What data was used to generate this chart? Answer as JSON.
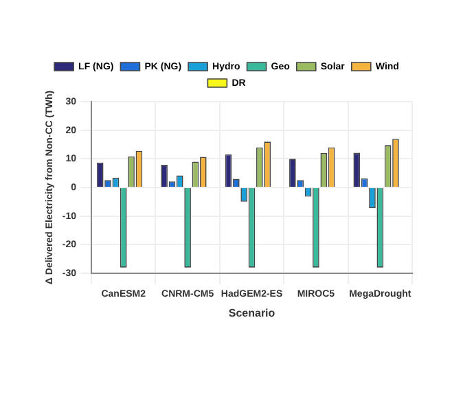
{
  "chart_data": {
    "type": "bar",
    "xlabel": "Scenario",
    "ylabel": "Δ Delivered Electricity from Non-CC (TWh)",
    "categories": [
      "CanESM2",
      "CNRM-CM5",
      "HadGEM2-ES",
      "MIROC5",
      "MegaDrought"
    ],
    "series": [
      {
        "name": "LF (NG)",
        "color": "#2e2a7a",
        "values": [
          8.7,
          7.9,
          11.6,
          10,
          12.1
        ]
      },
      {
        "name": "PK (NG)",
        "color": "#1f6fd6",
        "values": [
          2.6,
          2.1,
          3,
          2.6,
          3.2
        ]
      },
      {
        "name": "Hydro",
        "color": "#1aa0d8",
        "values": [
          3.4,
          4.2,
          -5,
          -3.2,
          -7.2
        ]
      },
      {
        "name": "Geo",
        "color": "#3bb99a",
        "values": [
          -28,
          -28,
          -28,
          -28,
          -28
        ]
      },
      {
        "name": "Solar",
        "color": "#9bbb63",
        "values": [
          10.8,
          9,
          14,
          12,
          14.8
        ]
      },
      {
        "name": "Wind",
        "color": "#f5b342",
        "values": [
          12.8,
          10.7,
          16,
          14,
          17
        ]
      },
      {
        "name": "DR",
        "color": "#f7f71a",
        "values": [
          0,
          0,
          0,
          0,
          0
        ]
      }
    ],
    "ylim": [
      -30,
      30
    ],
    "yticks": [
      -30,
      -20,
      -10,
      0,
      10,
      20,
      30
    ],
    "grid": true,
    "legend": "top"
  }
}
